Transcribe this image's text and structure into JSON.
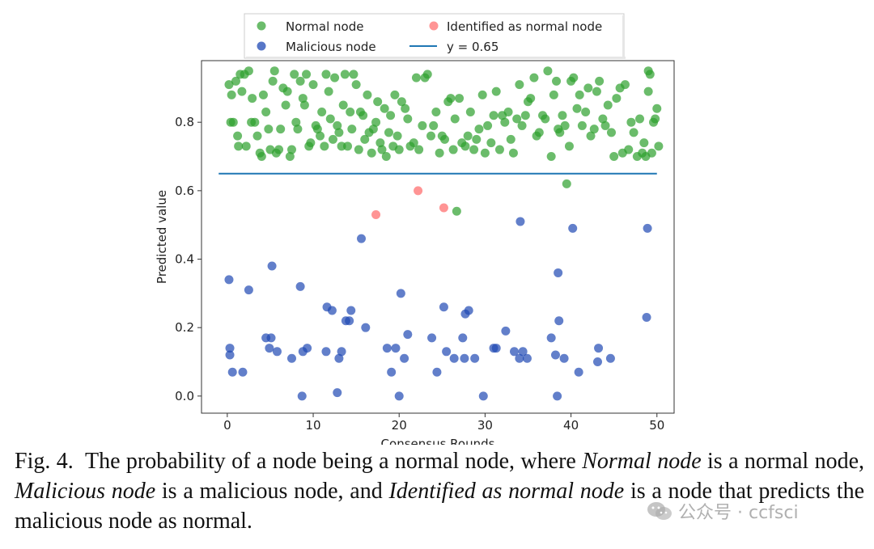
{
  "chart_data": {
    "type": "scatter",
    "xlabel": "Consensus Rounds",
    "ylabel": "Predicted value",
    "xlim": [
      -3,
      52
    ],
    "ylim": [
      -0.05,
      0.98
    ],
    "xticks": [
      0,
      10,
      20,
      30,
      40,
      50
    ],
    "yticks": [
      0.0,
      0.2,
      0.4,
      0.6,
      0.8
    ],
    "ytick_labels": [
      "0.0",
      "0.2",
      "0.4",
      "0.6",
      "0.8"
    ],
    "hline": {
      "y": 0.65,
      "x_range": [
        -1,
        50
      ],
      "label": "y = 0.65",
      "color": "#1f77b4"
    },
    "legend": {
      "location": "top-center, outside above plot",
      "entries": [
        "Normal node",
        "Identified as normal node",
        "Malicious node",
        "y = 0.65"
      ]
    },
    "series": [
      {
        "name": "Normal node",
        "color": "#2ca02c",
        "points": [
          [
            0.2,
            0.91
          ],
          [
            0.4,
            0.8
          ],
          [
            0.5,
            0.88
          ],
          [
            0.7,
            0.8
          ],
          [
            1.0,
            0.92
          ],
          [
            1.2,
            0.76
          ],
          [
            1.3,
            0.73
          ],
          [
            1.5,
            0.94
          ],
          [
            1.7,
            0.89
          ],
          [
            2.0,
            0.94
          ],
          [
            2.2,
            0.73
          ],
          [
            2.5,
            0.95
          ],
          [
            2.8,
            0.8
          ],
          [
            2.9,
            0.87
          ],
          [
            3.2,
            0.8
          ],
          [
            3.5,
            0.76
          ],
          [
            3.8,
            0.71
          ],
          [
            4.0,
            0.7
          ],
          [
            4.2,
            0.88
          ],
          [
            4.5,
            0.83
          ],
          [
            4.8,
            0.78
          ],
          [
            5.0,
            0.72
          ],
          [
            5.3,
            0.92
          ],
          [
            5.5,
            0.95
          ],
          [
            5.7,
            0.71
          ],
          [
            6.0,
            0.72
          ],
          [
            6.2,
            0.78
          ],
          [
            6.5,
            0.9
          ],
          [
            6.8,
            0.85
          ],
          [
            7.0,
            0.89
          ],
          [
            7.3,
            0.7
          ],
          [
            7.5,
            0.72
          ],
          [
            7.8,
            0.94
          ],
          [
            8.0,
            0.8
          ],
          [
            8.2,
            0.78
          ],
          [
            8.5,
            0.92
          ],
          [
            8.8,
            0.87
          ],
          [
            9.0,
            0.85
          ],
          [
            9.2,
            0.94
          ],
          [
            9.5,
            0.73
          ],
          [
            9.7,
            0.74
          ],
          [
            10.0,
            0.91
          ],
          [
            10.3,
            0.79
          ],
          [
            10.5,
            0.78
          ],
          [
            10.8,
            0.76
          ],
          [
            11.0,
            0.83
          ],
          [
            11.3,
            0.73
          ],
          [
            11.5,
            0.94
          ],
          [
            11.8,
            0.89
          ],
          [
            12.0,
            0.81
          ],
          [
            12.3,
            0.75
          ],
          [
            12.5,
            0.93
          ],
          [
            12.8,
            0.79
          ],
          [
            13.0,
            0.77
          ],
          [
            13.3,
            0.73
          ],
          [
            13.5,
            0.85
          ],
          [
            13.7,
            0.94
          ],
          [
            14.0,
            0.73
          ],
          [
            14.3,
            0.83
          ],
          [
            14.5,
            0.78
          ],
          [
            14.7,
            0.94
          ],
          [
            15.0,
            0.91
          ],
          [
            15.3,
            0.72
          ],
          [
            15.5,
            0.83
          ],
          [
            15.8,
            0.82
          ],
          [
            16.0,
            0.75
          ],
          [
            16.3,
            0.88
          ],
          [
            16.5,
            0.77
          ],
          [
            16.8,
            0.71
          ],
          [
            17.0,
            0.78
          ],
          [
            17.3,
            0.8
          ],
          [
            17.5,
            0.86
          ],
          [
            17.8,
            0.74
          ],
          [
            18.0,
            0.72
          ],
          [
            18.3,
            0.84
          ],
          [
            18.5,
            0.7
          ],
          [
            18.8,
            0.77
          ],
          [
            19.0,
            0.82
          ],
          [
            19.3,
            0.73
          ],
          [
            19.5,
            0.88
          ],
          [
            19.8,
            0.76
          ],
          [
            20.0,
            0.72
          ],
          [
            20.3,
            0.86
          ],
          [
            20.7,
            0.84
          ],
          [
            21.0,
            0.81
          ],
          [
            21.3,
            0.73
          ],
          [
            21.7,
            0.74
          ],
          [
            22.0,
            0.93
          ],
          [
            22.3,
            0.72
          ],
          [
            22.7,
            0.79
          ],
          [
            23.0,
            0.93
          ],
          [
            23.3,
            0.94
          ],
          [
            23.7,
            0.76
          ],
          [
            24.0,
            0.79
          ],
          [
            24.3,
            0.83
          ],
          [
            24.7,
            0.71
          ],
          [
            25.0,
            0.76
          ],
          [
            25.3,
            0.75
          ],
          [
            25.7,
            0.86
          ],
          [
            26.0,
            0.87
          ],
          [
            26.3,
            0.72
          ],
          [
            26.5,
            0.81
          ],
          [
            26.7,
            0.54
          ],
          [
            27.0,
            0.87
          ],
          [
            27.3,
            0.74
          ],
          [
            27.7,
            0.73
          ],
          [
            28.0,
            0.76
          ],
          [
            28.3,
            0.83
          ],
          [
            28.7,
            0.72
          ],
          [
            29.0,
            0.75
          ],
          [
            29.3,
            0.78
          ],
          [
            29.7,
            0.88
          ],
          [
            30.0,
            0.71
          ],
          [
            30.3,
            0.79
          ],
          [
            30.7,
            0.74
          ],
          [
            31.0,
            0.82
          ],
          [
            31.3,
            0.89
          ],
          [
            31.7,
            0.72
          ],
          [
            32.0,
            0.82
          ],
          [
            32.3,
            0.8
          ],
          [
            32.7,
            0.83
          ],
          [
            33.0,
            0.75
          ],
          [
            33.3,
            0.71
          ],
          [
            33.7,
            0.81
          ],
          [
            34.0,
            0.91
          ],
          [
            34.3,
            0.79
          ],
          [
            34.7,
            0.82
          ],
          [
            35.0,
            0.86
          ],
          [
            35.3,
            0.87
          ],
          [
            35.7,
            0.93
          ],
          [
            36.0,
            0.76
          ],
          [
            36.3,
            0.77
          ],
          [
            36.7,
            0.82
          ],
          [
            37.0,
            0.81
          ],
          [
            37.3,
            0.95
          ],
          [
            37.7,
            0.7
          ],
          [
            38.0,
            0.88
          ],
          [
            38.3,
            0.92
          ],
          [
            38.5,
            0.78
          ],
          [
            38.7,
            0.77
          ],
          [
            39.0,
            0.82
          ],
          [
            39.3,
            0.79
          ],
          [
            39.5,
            0.62
          ],
          [
            39.8,
            0.73
          ],
          [
            40.0,
            0.92
          ],
          [
            40.3,
            0.93
          ],
          [
            40.7,
            0.84
          ],
          [
            41.0,
            0.88
          ],
          [
            41.3,
            0.79
          ],
          [
            41.7,
            0.83
          ],
          [
            42.0,
            0.9
          ],
          [
            42.3,
            0.76
          ],
          [
            42.7,
            0.78
          ],
          [
            43.0,
            0.89
          ],
          [
            43.3,
            0.92
          ],
          [
            43.7,
            0.81
          ],
          [
            44.0,
            0.79
          ],
          [
            44.3,
            0.85
          ],
          [
            44.7,
            0.77
          ],
          [
            45.0,
            0.7
          ],
          [
            45.3,
            0.87
          ],
          [
            45.7,
            0.9
          ],
          [
            46.0,
            0.71
          ],
          [
            46.3,
            0.91
          ],
          [
            46.7,
            0.72
          ],
          [
            47.0,
            0.8
          ],
          [
            47.3,
            0.77
          ],
          [
            47.7,
            0.7
          ],
          [
            48.0,
            0.81
          ],
          [
            48.3,
            0.71
          ],
          [
            48.5,
            0.74
          ],
          [
            48.7,
            0.7
          ],
          [
            49.0,
            0.89
          ],
          [
            49.2,
            0.94
          ],
          [
            49.4,
            0.71
          ],
          [
            49.6,
            0.8
          ],
          [
            49.8,
            0.81
          ],
          [
            50.0,
            0.84
          ],
          [
            50.2,
            0.73
          ],
          [
            49.0,
            0.95
          ]
        ]
      },
      {
        "name": "Identified as normal node",
        "color": "#ff6666",
        "points": [
          [
            17.3,
            0.53
          ],
          [
            22.2,
            0.6
          ],
          [
            25.2,
            0.55
          ]
        ]
      },
      {
        "name": "Malicious node",
        "color": "#1f48b4",
        "points": [
          [
            0.2,
            0.34
          ],
          [
            0.3,
            0.14
          ],
          [
            0.3,
            0.12
          ],
          [
            0.6,
            0.07
          ],
          [
            1.8,
            0.07
          ],
          [
            2.5,
            0.31
          ],
          [
            4.5,
            0.17
          ],
          [
            4.9,
            0.14
          ],
          [
            5.1,
            0.17
          ],
          [
            5.2,
            0.38
          ],
          [
            5.8,
            0.13
          ],
          [
            7.5,
            0.11
          ],
          [
            8.5,
            0.32
          ],
          [
            8.7,
            0.0
          ],
          [
            8.8,
            0.13
          ],
          [
            9.3,
            0.14
          ],
          [
            11.5,
            0.13
          ],
          [
            11.6,
            0.26
          ],
          [
            12.2,
            0.25
          ],
          [
            12.8,
            0.01
          ],
          [
            13.0,
            0.11
          ],
          [
            13.3,
            0.13
          ],
          [
            13.8,
            0.22
          ],
          [
            14.2,
            0.22
          ],
          [
            14.4,
            0.25
          ],
          [
            15.6,
            0.46
          ],
          [
            16.1,
            0.2
          ],
          [
            18.6,
            0.14
          ],
          [
            19.1,
            0.07
          ],
          [
            19.6,
            0.14
          ],
          [
            20.0,
            0.0
          ],
          [
            20.2,
            0.3
          ],
          [
            20.6,
            0.11
          ],
          [
            21.0,
            0.18
          ],
          [
            23.8,
            0.17
          ],
          [
            24.4,
            0.07
          ],
          [
            25.2,
            0.26
          ],
          [
            25.5,
            0.13
          ],
          [
            26.4,
            0.11
          ],
          [
            27.4,
            0.17
          ],
          [
            27.6,
            0.11
          ],
          [
            27.7,
            0.24
          ],
          [
            28.1,
            0.25
          ],
          [
            28.8,
            0.11
          ],
          [
            29.8,
            0.0
          ],
          [
            31.0,
            0.14
          ],
          [
            31.3,
            0.14
          ],
          [
            32.4,
            0.19
          ],
          [
            33.4,
            0.13
          ],
          [
            34.0,
            0.11
          ],
          [
            34.1,
            0.51
          ],
          [
            34.4,
            0.13
          ],
          [
            34.9,
            0.11
          ],
          [
            37.7,
            0.17
          ],
          [
            38.2,
            0.12
          ],
          [
            38.4,
            0.0
          ],
          [
            38.5,
            0.36
          ],
          [
            38.6,
            0.22
          ],
          [
            39.2,
            0.11
          ],
          [
            40.2,
            0.49
          ],
          [
            40.9,
            0.07
          ],
          [
            43.1,
            0.1
          ],
          [
            43.2,
            0.14
          ],
          [
            44.6,
            0.11
          ],
          [
            48.8,
            0.23
          ],
          [
            48.9,
            0.49
          ]
        ]
      }
    ]
  },
  "caption": {
    "fig_label": "Fig. 4.",
    "sentence_start": "The probability of a node being a normal node, where",
    "term_normal": "Normal node",
    "is_a_normal": "is a normal node,",
    "term_malicious": "Malicious node",
    "is_a_malicious": "is a malicious node, and",
    "term_identified": "Identified as normal node",
    "sentence_end": "is a node that predicts the malicious node as normal."
  },
  "watermark": {
    "text": "公众号 · ccfsci"
  }
}
